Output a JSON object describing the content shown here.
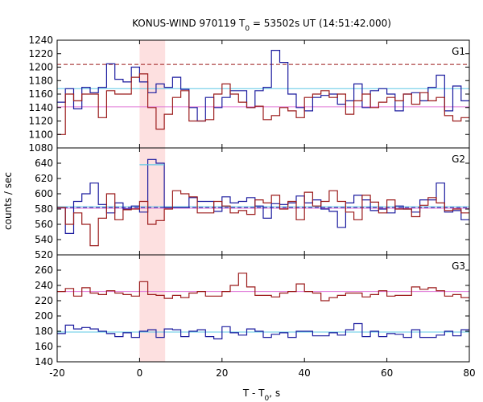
{
  "chart_data": {
    "type": "line",
    "title": "KONUS-WIND 970119 T",
    "title_sub": "0",
    "title_rest": " = 53502s UT (14:51:42.000)",
    "xlabel": "T - T",
    "xlabel_sub": "0",
    "xlabel_rest": ", s",
    "ylabel": "counts / sec",
    "x_range": [
      -20,
      80
    ],
    "x_ticks": [
      -20,
      0,
      20,
      40,
      60,
      80
    ],
    "x_tick_labels": [
      "-20",
      "0",
      "20",
      "40",
      "60",
      "80"
    ],
    "highlight": {
      "x0": 0,
      "x1": 6.2,
      "color": "#fde0e0"
    },
    "bin_edges": [
      -20,
      -18,
      -16,
      -14,
      -12,
      -10,
      -8,
      -6,
      -4,
      -2,
      0,
      2,
      4,
      6,
      8,
      10,
      12,
      14,
      16,
      18,
      20,
      22,
      24,
      26,
      28,
      30,
      32,
      34,
      36,
      38,
      40,
      42,
      44,
      46,
      48,
      50,
      52,
      54,
      56,
      58,
      60,
      62,
      64,
      66,
      68,
      70,
      72,
      74,
      76,
      78,
      80
    ],
    "panels": [
      {
        "label": "G1",
        "ylim": [
          1080,
          1240
        ],
        "y_ticks": [
          1080,
          1100,
          1120,
          1140,
          1160,
          1180,
          1200,
          1220,
          1240
        ],
        "y_tick_labels": [
          "1080",
          "1100",
          "1120",
          "1140",
          "1160",
          "1180",
          "1200",
          "1220",
          "1240"
        ],
        "series": [
          {
            "color": "#1a1a9e",
            "values": [
              1148,
              1168,
              1138,
              1170,
              1162,
              1170,
              1205,
              1182,
              1178,
              1200,
              1178,
              1162,
              1175,
              1170,
              1185,
              1167,
              1140,
              1120,
              1155,
              1140,
              1155,
              1165,
              1165,
              1140,
              1165,
              1170,
              1225,
              1207,
              1160,
              1140,
              1135,
              1155,
              1158,
              1160,
              1145,
              1150,
              1175,
              1140,
              1165,
              1168,
              1160,
              1135,
              1160,
              1162,
              1150,
              1170,
              1188,
              1135,
              1172,
              1150
            ]
          },
          {
            "color": "#9b1a1a",
            "values": [
              1100,
              1160,
              1150,
              1160,
              1160,
              1125,
              1165,
              1160,
              1160,
              1185,
              1190,
              1140,
              1108,
              1130,
              1155,
              1165,
              1120,
              1120,
              1122,
              1160,
              1175,
              1160,
              1148,
              1140,
              1142,
              1122,
              1128,
              1140,
              1135,
              1125,
              1155,
              1160,
              1165,
              1155,
              1160,
              1130,
              1150,
              1160,
              1140,
              1148,
              1155,
              1150,
              1160,
              1145,
              1162,
              1150,
              1155,
              1128,
              1120,
              1125
            ]
          }
        ],
        "hlines": [
          {
            "y": 1204,
            "color": "#9b1a1a",
            "dash": true
          },
          {
            "y": 1168,
            "color": "#5ec8e6",
            "dash": false
          },
          {
            "y": 1141,
            "color": "#e07ad8",
            "dash": false
          }
        ]
      },
      {
        "label": "G2",
        "ylim": [
          520,
          660
        ],
        "y_ticks": [
          520,
          540,
          560,
          580,
          600,
          620,
          640
        ],
        "y_tick_labels": [
          "520",
          "540",
          "560",
          "580",
          "600",
          "620",
          "640"
        ],
        "series": [
          {
            "color": "#1a1a9e",
            "values": [
              582,
              548,
              590,
              600,
              614,
              586,
              575,
              588,
              580,
              584,
              576,
              645,
              640,
              582,
              582,
              582,
              595,
              590,
              590,
              577,
              596,
              588,
              590,
              595,
              584,
              568,
              587,
              586,
              588,
              597,
              588,
              592,
              580,
              577,
              556,
              588,
              598,
              592,
              578,
              580,
              575,
              584,
              580,
              576,
              592,
              592,
              614,
              576,
              578,
              566
            ]
          },
          {
            "color": "#9b1a1a",
            "values": [
              582,
              560,
              575,
              560,
              532,
              568,
              600,
              566,
              579,
              580,
              590,
              560,
              565,
              580,
              604,
              600,
              596,
              575,
              575,
              590,
              584,
              575,
              578,
              573,
              592,
              588,
              598,
              580,
              590,
              566,
              602,
              584,
              590,
              604,
              590,
              576,
              566,
              598,
              589,
              575,
              592,
              580,
              580,
              570,
              585,
              595,
              588,
              578,
              580,
              575
            ]
          },
          {
            "color": "#5ec8e6",
            "values": [
              null,
              null,
              null,
              null,
              null,
              null,
              null,
              null,
              null,
              null,
              638,
              638,
              638,
              null,
              null,
              null,
              null,
              null,
              null,
              null,
              null,
              null,
              null,
              null,
              null,
              null,
              null,
              null,
              null,
              null,
              null,
              null,
              null,
              null,
              null,
              null,
              null,
              null,
              null,
              null,
              null,
              null,
              null,
              null,
              null,
              null,
              null,
              null,
              null,
              null
            ]
          }
        ],
        "hlines": [
          {
            "y": 583,
            "color": "#5ec8e6",
            "dash": false
          },
          {
            "y": 582,
            "color": "#1a1a9e",
            "dash": true
          },
          {
            "y": 581,
            "color": "#e07ad8",
            "dash": false
          }
        ]
      },
      {
        "label": "G3",
        "ylim": [
          140,
          280
        ],
        "y_ticks": [
          140,
          160,
          180,
          200,
          220,
          240,
          260
        ],
        "y_tick_labels": [
          "140",
          "160",
          "180",
          "200",
          "220",
          "240",
          "260"
        ],
        "series": [
          {
            "color": "#9b1a1a",
            "values": [
              232,
              236,
              226,
              237,
              230,
              228,
              233,
              230,
              228,
              226,
              245,
              228,
              227,
              223,
              227,
              224,
              230,
              232,
              226,
              226,
              232,
              240,
              256,
              238,
              227,
              227,
              225,
              230,
              232,
              242,
              232,
              230,
              220,
              224,
              227,
              230,
              230,
              225,
              228,
              233,
              226,
              227,
              227,
              238,
              235,
              237,
              233,
              226,
              228,
              224
            ]
          },
          {
            "color": "#1a1a9e",
            "values": [
              177,
              188,
              183,
              185,
              183,
              180,
              177,
              173,
              178,
              172,
              180,
              182,
              172,
              183,
              182,
              173,
              180,
              182,
              173,
              170,
              186,
              178,
              175,
              183,
              180,
              172,
              176,
              178,
              172,
              180,
              180,
              174,
              174,
              178,
              175,
              182,
              190,
              173,
              180,
              173,
              177,
              176,
              172,
              182,
              172,
              172,
              175,
              180,
              174,
              182
            ]
          }
        ],
        "hlines": [
          {
            "y": 232,
            "color": "#e07ad8",
            "dash": false
          },
          {
            "y": 179,
            "color": "#5ec8e6",
            "dash": false
          }
        ]
      }
    ]
  }
}
